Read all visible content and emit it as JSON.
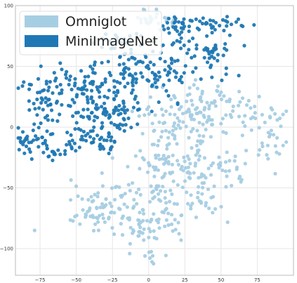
{
  "chart_data": {
    "type": "scatter",
    "title": "",
    "xlabel": "",
    "ylabel": "",
    "xlim": [
      -92,
      100
    ],
    "ylim": [
      -122,
      100
    ],
    "xticks": [
      -75,
      -50,
      -25,
      0,
      25,
      50,
      75
    ],
    "yticks": [
      -100,
      -50,
      0,
      50,
      100
    ],
    "xtick_labels": [
      "−75",
      "−50",
      "−25",
      "0",
      "25",
      "50",
      "75"
    ],
    "ytick_labels": [
      "−100",
      "−50",
      "0",
      "50",
      "100"
    ],
    "grid": true,
    "legend_position": "top-left",
    "series": [
      {
        "name": "Omniglot",
        "color": "#a6cee3",
        "clusters": [
          {
            "cx": 0,
            "cy": 90,
            "sx": 6,
            "sy": 5,
            "n": 18
          },
          {
            "cx": 12,
            "cy": 90,
            "sx": 5,
            "sy": 4,
            "n": 8
          },
          {
            "cx": 20,
            "cy": 0,
            "sx": 14,
            "sy": 12,
            "n": 60
          },
          {
            "cx": 35,
            "cy": 10,
            "sx": 12,
            "sy": 10,
            "n": 50
          },
          {
            "cx": 45,
            "cy": 25,
            "sx": 10,
            "sy": 5,
            "n": 25
          },
          {
            "cx": 70,
            "cy": 10,
            "sx": 10,
            "sy": 8,
            "n": 25
          },
          {
            "cx": 85,
            "cy": -10,
            "sx": 6,
            "sy": 12,
            "n": 25
          },
          {
            "cx": 20,
            "cy": -30,
            "sx": 18,
            "sy": 10,
            "n": 70
          },
          {
            "cx": 55,
            "cy": -35,
            "sx": 12,
            "sy": 8,
            "n": 35
          },
          {
            "cx": 0,
            "cy": -55,
            "sx": 14,
            "sy": 10,
            "n": 45
          },
          {
            "cx": 35,
            "cy": -60,
            "sx": 10,
            "sy": 8,
            "n": 30
          },
          {
            "cx": -25,
            "cy": -75,
            "sx": 16,
            "sy": 8,
            "n": 60
          },
          {
            "cx": 0,
            "cy": -85,
            "sx": 8,
            "sy": 8,
            "n": 25
          },
          {
            "cx": -40,
            "cy": -58,
            "sx": 8,
            "sy": 7,
            "n": 25
          },
          {
            "cx": 15,
            "cy": -80,
            "sx": 7,
            "sy": 7,
            "n": 18
          },
          {
            "cx": 0,
            "cy": -108,
            "sx": 2,
            "sy": 4,
            "n": 7
          }
        ]
      },
      {
        "name": "MiniImageNet",
        "color": "#1f78b4",
        "clusters": [
          {
            "cx": -70,
            "cy": 25,
            "sx": 10,
            "sy": 12,
            "n": 60
          },
          {
            "cx": -45,
            "cy": 35,
            "sx": 10,
            "sy": 10,
            "n": 45
          },
          {
            "cx": -40,
            "cy": 10,
            "sx": 10,
            "sy": 8,
            "n": 40
          },
          {
            "cx": -20,
            "cy": 30,
            "sx": 12,
            "sy": 12,
            "n": 50
          },
          {
            "cx": -10,
            "cy": 55,
            "sx": 10,
            "sy": 8,
            "n": 35
          },
          {
            "cx": -85,
            "cy": -10,
            "sx": 5,
            "sy": 8,
            "n": 25
          },
          {
            "cx": -65,
            "cy": -15,
            "sx": 9,
            "sy": 6,
            "n": 35
          },
          {
            "cx": -35,
            "cy": -10,
            "sx": 9,
            "sy": 6,
            "n": 35
          },
          {
            "cx": -20,
            "cy": 10,
            "sx": 8,
            "sy": 10,
            "n": 35
          },
          {
            "cx": 25,
            "cy": 70,
            "sx": 14,
            "sy": 8,
            "n": 35
          },
          {
            "cx": 20,
            "cy": 45,
            "sx": 6,
            "sy": 12,
            "n": 30
          },
          {
            "cx": 45,
            "cy": 55,
            "sx": 8,
            "sy": 7,
            "n": 30
          },
          {
            "cx": 48,
            "cy": 85,
            "sx": 10,
            "sy": 3,
            "n": 30
          },
          {
            "cx": 22,
            "cy": 85,
            "sx": 6,
            "sy": 3,
            "n": 20
          },
          {
            "cx": -25,
            "cy": 70,
            "sx": 8,
            "sy": 5,
            "n": 20
          },
          {
            "cx": 5,
            "cy": 40,
            "sx": 5,
            "sy": 8,
            "n": 15
          }
        ]
      }
    ]
  }
}
